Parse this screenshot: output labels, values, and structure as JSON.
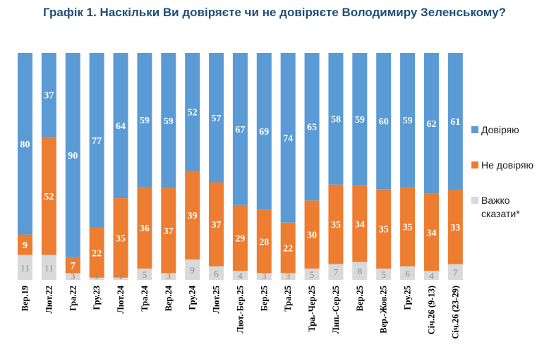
{
  "title": "Графік 1. Наскільки Ви довіряєте чи не довіряєте Володимиру Зеленському?",
  "colors": {
    "trust": "#5b9bd5",
    "distrust": "#ed7d31",
    "hard": "#d9d9d9"
  },
  "chart_data": {
    "type": "bar",
    "stacked": true,
    "title": "Графік 1. Наскільки Ви довіряєте чи не довіряєте Володимиру Зеленському?",
    "ylim": [
      0,
      100
    ],
    "categories": [
      "Вер.19",
      "Лют.22",
      "Гра.22",
      "Гру.23",
      "Лют.24",
      "Тра.24",
      "Вер.24",
      "Гру.24",
      "Лют.25",
      "Лют.-Бер.25",
      "Бер.25",
      "Тра.25",
      "Тра.-Чер.25",
      "Лип.-Сер.25",
      "Вер.25",
      "Вер.-Жов.25",
      "Гру.25",
      "Січ.26 (9-13)",
      "Січ.26 (23-29)"
    ],
    "series": [
      {
        "name": "Важко сказати*",
        "values": [
          11,
          11,
          3,
          1,
          1,
          5,
          3,
          9,
          6,
          4,
          3,
          3,
          5,
          7,
          8,
          5,
          6,
          4,
          7
        ]
      },
      {
        "name": "Не довіряю",
        "values": [
          9,
          52,
          7,
          22,
          35,
          36,
          37,
          39,
          37,
          29,
          28,
          22,
          30,
          35,
          34,
          35,
          35,
          34,
          33
        ]
      },
      {
        "name": "Довіряю",
        "values": [
          80,
          37,
          90,
          77,
          64,
          59,
          59,
          52,
          57,
          67,
          69,
          74,
          65,
          58,
          59,
          60,
          59,
          62,
          61
        ]
      }
    ],
    "legend": [
      "Довіряю",
      "Не довіряю",
      "Важко сказати*"
    ],
    "legend_position": "right"
  }
}
